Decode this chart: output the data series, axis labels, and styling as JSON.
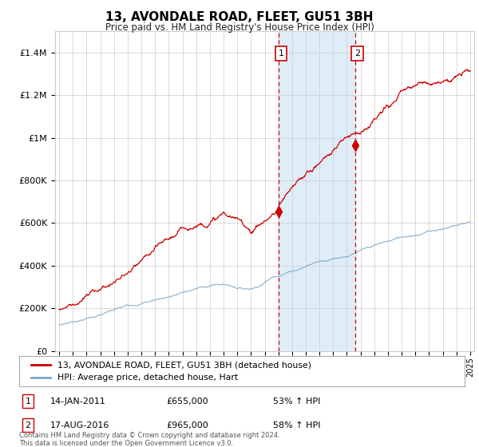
{
  "title": "13, AVONDALE ROAD, FLEET, GU51 3BH",
  "subtitle": "Price paid vs. HM Land Registry's House Price Index (HPI)",
  "legend_line1": "13, AVONDALE ROAD, FLEET, GU51 3BH (detached house)",
  "legend_line2": "HPI: Average price, detached house, Hart",
  "annotation1_date": "14-JAN-2011",
  "annotation1_price": "£655,000",
  "annotation1_pct": "53% ↑ HPI",
  "annotation2_date": "17-AUG-2016",
  "annotation2_price": "£965,000",
  "annotation2_pct": "58% ↑ HPI",
  "footnote": "Contains HM Land Registry data © Crown copyright and database right 2024.\nThis data is licensed under the Open Government Licence v3.0.",
  "red_color": "#cc0000",
  "blue_color": "#7aa8cc",
  "shade_color": "#deedf7",
  "grid_color": "#cccccc",
  "background_color": "#ffffff",
  "ylim": [
    0,
    1500000
  ],
  "yticks": [
    0,
    200000,
    400000,
    600000,
    800000,
    1000000,
    1200000,
    1400000
  ],
  "ytick_labels": [
    "£0",
    "£200K",
    "£400K",
    "£600K",
    "£800K",
    "£1M",
    "£1.2M",
    "£1.4M"
  ],
  "marker1_x": 2011.04,
  "marker1_y": 655000,
  "marker2_x": 2016.63,
  "marker2_y": 965000,
  "xlim_left": 1994.7,
  "xlim_right": 2025.3
}
